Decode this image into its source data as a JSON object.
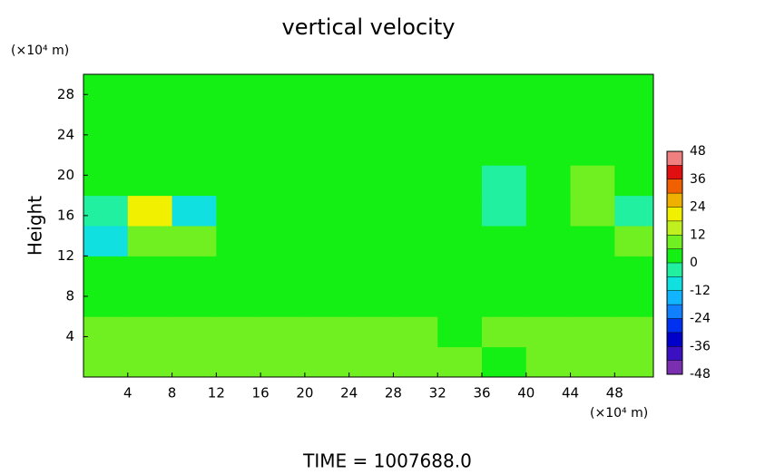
{
  "chart_data": {
    "type": "heatmap",
    "title": "vertical velocity",
    "ylabel": "Height",
    "xunit": "(×10⁴ m)",
    "yunit": "(×10⁴ m)",
    "footer": "TIME  =  1007688.0",
    "xlim": [
      0,
      51.5
    ],
    "ylim": [
      0,
      30
    ],
    "xticks": [
      4,
      8,
      12,
      16,
      20,
      24,
      28,
      32,
      36,
      40,
      44,
      48
    ],
    "yticks": [
      4,
      8,
      12,
      16,
      20,
      24,
      28
    ],
    "x": [
      2,
      6,
      10,
      14,
      18,
      22,
      26,
      30,
      34,
      38,
      42,
      46,
      50
    ],
    "y": [
      1.5,
      4.5,
      7.5,
      10.5,
      13.5,
      16.5,
      19.5,
      22.5,
      25.5,
      28.5
    ],
    "z": [
      [
        7,
        7,
        7,
        7,
        7,
        7,
        7,
        7,
        7,
        5,
        7,
        7,
        7
      ],
      [
        7,
        9,
        7,
        7,
        7,
        7,
        7,
        7,
        5,
        7,
        7,
        7,
        7
      ],
      [
        5,
        5,
        5,
        3,
        3,
        3,
        3,
        3,
        3,
        3,
        3,
        3,
        5
      ],
      [
        3,
        5,
        3,
        3,
        3,
        3,
        3,
        3,
        3,
        3,
        3,
        3,
        5
      ],
      [
        -8,
        9,
        7,
        3,
        3,
        3,
        3,
        3,
        3,
        3,
        3,
        5,
        9
      ],
      [
        -6,
        20,
        -10,
        3,
        3,
        3,
        3,
        3,
        3,
        -4,
        3,
        9,
        -4
      ],
      [
        3,
        3,
        3,
        3,
        3,
        3,
        3,
        3,
        3,
        -2,
        3,
        7,
        3
      ],
      [
        3,
        3,
        3,
        3,
        3,
        3,
        3,
        3,
        3,
        3,
        3,
        3,
        3
      ],
      [
        3,
        3,
        3,
        3,
        3,
        3,
        3,
        3,
        3,
        3,
        3,
        3,
        3
      ],
      [
        3,
        3,
        3,
        3,
        3,
        3,
        3,
        3,
        3,
        3,
        3,
        3,
        3
      ]
    ],
    "levels": [
      -48,
      -42,
      -36,
      -30,
      -24,
      -18,
      -12,
      -6,
      0,
      6,
      12,
      18,
      24,
      30,
      36,
      42,
      48
    ],
    "colors": [
      "#7a2fb0",
      "#3a10c0",
      "#0000c8",
      "#0030f0",
      "#1080ff",
      "#10b4ff",
      "#10e0e0",
      "#20f0a0",
      "#14f014",
      "#70f020",
      "#c0f020",
      "#f0f000",
      "#f0b000",
      "#f06000",
      "#e01010",
      "#f08080"
    ],
    "cticks": [
      -48,
      -36,
      -24,
      -12,
      0,
      12,
      24,
      36,
      48
    ]
  }
}
